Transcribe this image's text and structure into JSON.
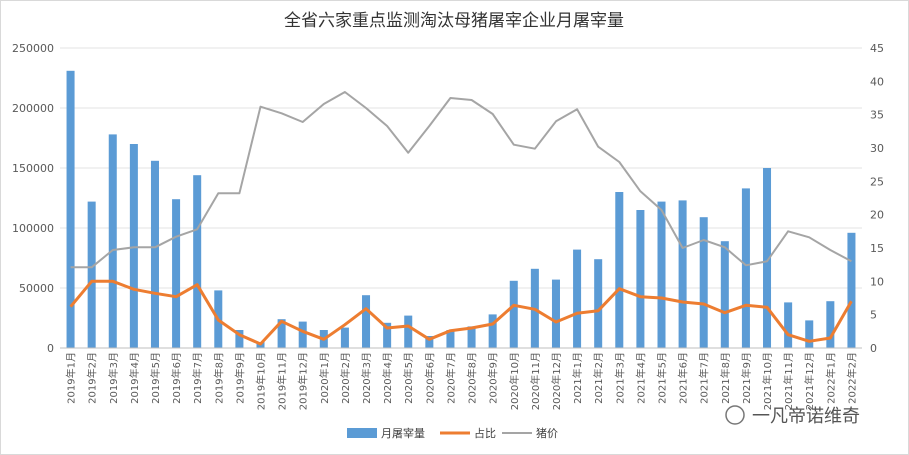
{
  "chart_data": {
    "type": "bar+line",
    "title": "全省六家重点监测淘汰母猪屠宰企业月屠宰量",
    "categories": [
      "2019年1月",
      "2019年2月",
      "2019年3月",
      "2019年4月",
      "2019年5月",
      "2019年6月",
      "2019年7月",
      "2019年8月",
      "2019年9月",
      "2019年10月",
      "2019年11月",
      "2019年12月",
      "2020年1月",
      "2020年2月",
      "2020年3月",
      "2020年4月",
      "2020年5月",
      "2020年6月",
      "2020年7月",
      "2020年8月",
      "2020年9月",
      "2020年10月",
      "2020年11月",
      "2020年12月",
      "2021年1月",
      "2021年2月",
      "2021年3月",
      "2021年4月",
      "2021年5月",
      "2021年6月",
      "2021年7月",
      "2021年8月",
      "2021年9月",
      "2021年10月",
      "2021年11月",
      "2021年12月",
      "2022年1月",
      "2022年2月"
    ],
    "left_axis": {
      "min": 0,
      "max": 250000,
      "ticks": [
        "0",
        "50000",
        "100000",
        "150000",
        "200000",
        "250000"
      ]
    },
    "right_axis": {
      "min": 0,
      "max": 45,
      "ticks": [
        "0",
        "5",
        "10",
        "15",
        "20",
        "25",
        "30",
        "35",
        "40",
        "45"
      ]
    },
    "series": [
      {
        "name": "月屠宰量",
        "type": "bar",
        "axis": "left",
        "color": "#5b9bd5",
        "values": [
          231000,
          122000,
          178000,
          170000,
          156000,
          124000,
          144000,
          48000,
          15000,
          5000,
          24000,
          22000,
          15000,
          17000,
          44000,
          21000,
          27000,
          10000,
          15000,
          18000,
          28000,
          56000,
          66000,
          57000,
          82000,
          74000,
          130000,
          115000,
          122000,
          123000,
          109000,
          89000,
          133000,
          150000,
          38000,
          23000,
          39000,
          96000
        ]
      },
      {
        "name": "占比",
        "type": "line",
        "axis": "right",
        "color": "#ed7d31",
        "values": [
          6.2,
          10.0,
          10.0,
          8.8,
          8.2,
          7.7,
          9.5,
          4.2,
          2.0,
          0.6,
          4.0,
          2.5,
          1.3,
          3.5,
          5.9,
          3.0,
          3.3,
          1.3,
          2.6,
          3.0,
          3.6,
          6.4,
          5.8,
          3.9,
          5.2,
          5.6,
          8.9,
          7.7,
          7.5,
          6.9,
          6.6,
          5.3,
          6.4,
          6.1,
          2.0,
          1.0,
          1.5,
          7.0
        ]
      },
      {
        "name": "猪价",
        "type": "line",
        "axis": "right",
        "color": "#a5a5a5",
        "values": [
          12.1,
          12.1,
          14.7,
          15.1,
          15.1,
          16.7,
          17.8,
          23.2,
          23.2,
          36.2,
          35.2,
          33.9,
          36.6,
          38.4,
          36.0,
          33.3,
          29.3,
          33.3,
          37.5,
          37.2,
          35.1,
          30.5,
          29.9,
          34.0,
          35.8,
          30.2,
          27.9,
          23.5,
          20.7,
          15.0,
          16.2,
          15.1,
          12.4,
          13.0,
          17.5,
          16.6,
          14.7,
          13.0
        ]
      }
    ],
    "legend_position": "bottom"
  },
  "watermark": "一凡帝诺维奇"
}
